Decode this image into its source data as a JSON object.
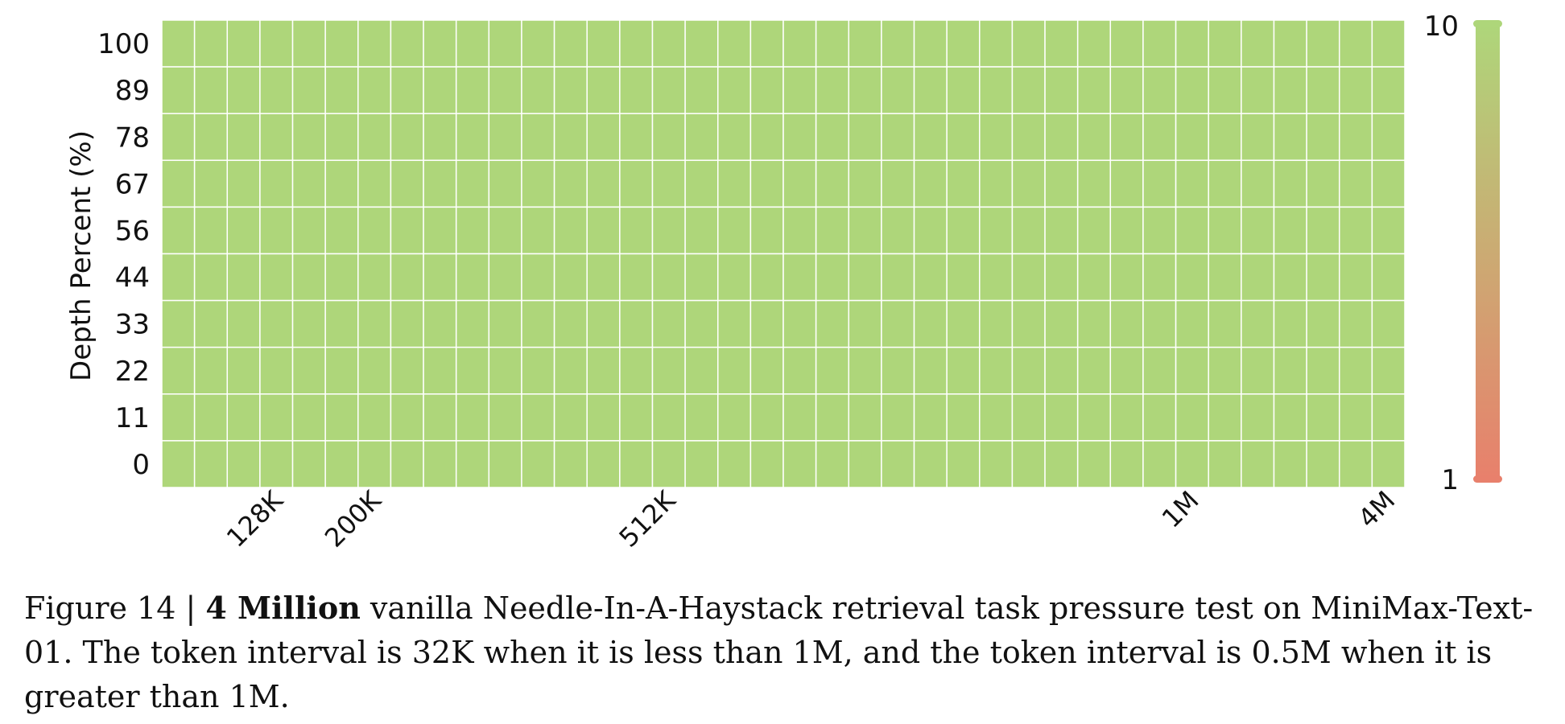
{
  "chart_data": {
    "type": "heatmap",
    "ylabel": "Depth Percent (%)",
    "xlabel": "",
    "y_ticks": [
      "100",
      "89",
      "78",
      "67",
      "56",
      "44",
      "33",
      "22",
      "11",
      "0"
    ],
    "x_ticks": [
      {
        "label": "128K",
        "column": 3
      },
      {
        "label": "200K",
        "column": 6
      },
      {
        "label": "512K",
        "column": 15
      },
      {
        "label": "1M",
        "column": 31
      },
      {
        "label": "4M",
        "column": 37
      }
    ],
    "num_columns": 38,
    "num_rows": 10,
    "score_value": 10,
    "colorbar": {
      "min": 1,
      "max": 10,
      "min_label": "1",
      "max_label": "10",
      "min_color": "#e8806c",
      "max_color": "#aed67a"
    },
    "grid": true
  },
  "caption": {
    "prefix": "Figure 14 | ",
    "bold": "4 Million",
    "rest": " vanilla Needle-In-A-Haystack retrieval task pressure test on MiniMax-Text-01. The token interval is 32K when it is less than 1M, and the token interval is 0.5M when it is greater than 1M."
  }
}
